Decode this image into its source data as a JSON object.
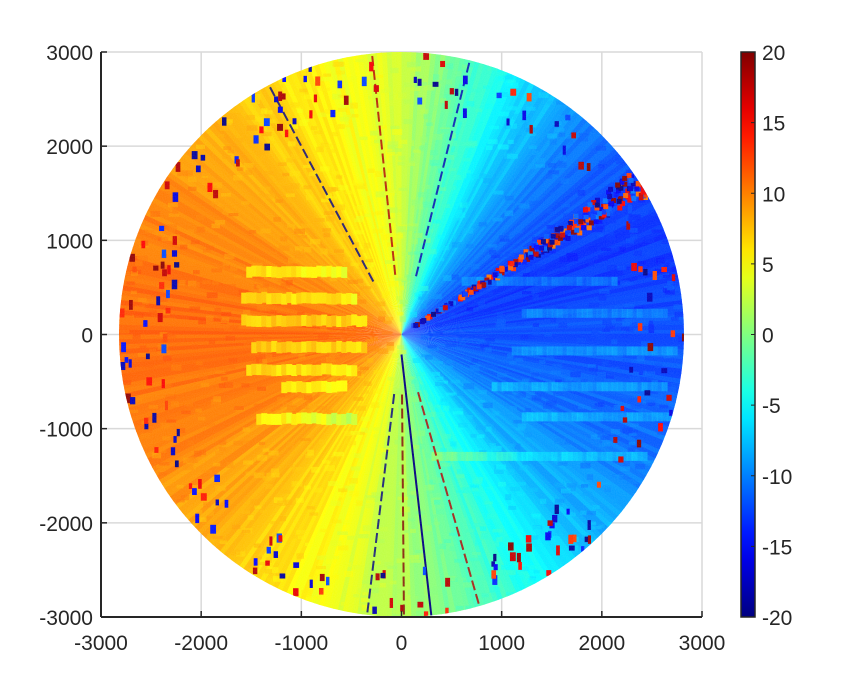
{
  "chart_data": {
    "type": "heatmap",
    "subtype": "polar-radial-velocity-field",
    "title": "",
    "xlabel": "",
    "ylabel": "",
    "xlim": [
      -3000,
      3000
    ],
    "ylim": [
      -3000,
      3000
    ],
    "max_radius": 3000,
    "x_ticks": [
      "-3000",
      "-2000",
      "-1000",
      "0",
      "1000",
      "2000",
      "3000"
    ],
    "x_tick_values": [
      -3000,
      -2000,
      -1000,
      0,
      1000,
      2000,
      3000
    ],
    "y_ticks": [
      "3000",
      "2000",
      "1000",
      "0",
      "-1000",
      "-2000",
      "-3000"
    ],
    "y_tick_values": [
      3000,
      2000,
      1000,
      0,
      -1000,
      -2000,
      -3000
    ],
    "grid": true,
    "colorbar": {
      "colormap": "jet",
      "clim": [
        -20,
        20
      ],
      "ticks": [
        "20",
        "15",
        "10",
        "5",
        "0",
        "-5",
        "-10",
        "-15",
        "-20"
      ],
      "tick_values": [
        20,
        15,
        10,
        5,
        0,
        -5,
        -10,
        -15,
        -20
      ]
    },
    "field": {
      "description_of_values": "value ≈ -12·sin(azimuth) for x≥0 region and ≈ +11 for west sector; colour scale saturates at ±20",
      "west_sector_value": 11,
      "east_sector_value": -12,
      "north_value": 3,
      "south_value": 2
    },
    "bright_streaks": [
      {
        "y": 660,
        "x_start": -1550,
        "x_end": -600
      },
      {
        "y": 380,
        "x_start": -1600,
        "x_end": -500
      },
      {
        "y": 140,
        "x_start": -1600,
        "x_end": -400
      },
      {
        "y": -140,
        "x_start": -1500,
        "x_end": -400
      },
      {
        "y": -380,
        "x_start": -1550,
        "x_end": -500
      },
      {
        "y": -560,
        "x_start": -1200,
        "x_end": -600
      },
      {
        "y": -900,
        "x_start": -1450,
        "x_end": -500
      }
    ],
    "noisy_ray_azimuth_deg": 32,
    "colors": {
      "axis": "#262626",
      "grid": "#d9d9d9"
    }
  }
}
